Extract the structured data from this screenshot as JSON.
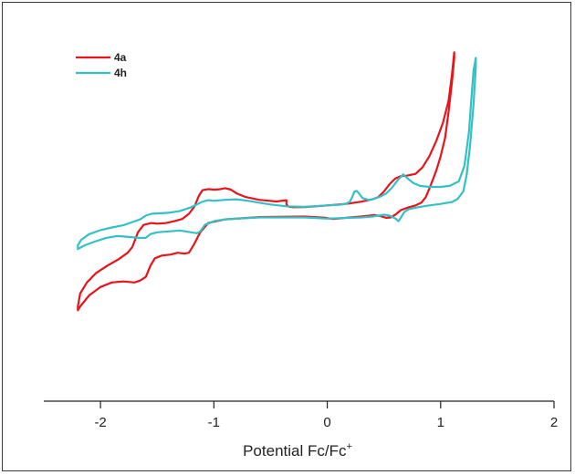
{
  "chart_data": {
    "type": "line",
    "title": "",
    "xlabel": "Potential Fc/Fc",
    "xlabel_sup": "+",
    "ylabel": "",
    "xlim": [
      -2.5,
      2.0
    ],
    "ylim": [
      -1.0,
      1.0
    ],
    "x_ticks": [
      {
        "value": -2,
        "label": "-2"
      },
      {
        "value": -1,
        "label": "-1"
      },
      {
        "value": 0,
        "label": "0"
      },
      {
        "value": 1,
        "label": "1"
      },
      {
        "value": 2,
        "label": "2"
      }
    ],
    "grid": false,
    "legend_position": "top-left",
    "series": [
      {
        "name": "4a",
        "color": "#e8141b",
        "points": [
          [
            -0.36,
            0.083
          ],
          [
            -0.36,
            0.06
          ],
          [
            -0.34,
            0.048
          ],
          [
            -0.3,
            0.045
          ],
          [
            -0.2,
            0.046
          ],
          [
            -0.1,
            0.05
          ],
          [
            0.0,
            0.055
          ],
          [
            0.1,
            0.06
          ],
          [
            0.2,
            0.066
          ],
          [
            0.3,
            0.075
          ],
          [
            0.4,
            0.088
          ],
          [
            0.45,
            0.1
          ],
          [
            0.5,
            0.13
          ],
          [
            0.55,
            0.17
          ],
          [
            0.6,
            0.2
          ],
          [
            0.65,
            0.213
          ],
          [
            0.7,
            0.215
          ],
          [
            0.74,
            0.22
          ],
          [
            0.78,
            0.225
          ],
          [
            0.84,
            0.26
          ],
          [
            0.9,
            0.32
          ],
          [
            0.96,
            0.4
          ],
          [
            1.02,
            0.5
          ],
          [
            1.07,
            0.62
          ],
          [
            1.1,
            0.76
          ],
          [
            1.12,
            0.88
          ],
          [
            1.12,
            0.85
          ],
          [
            1.1,
            0.72
          ],
          [
            1.07,
            0.56
          ],
          [
            1.04,
            0.42
          ],
          [
            1.0,
            0.32
          ],
          [
            0.96,
            0.24
          ],
          [
            0.91,
            0.16
          ],
          [
            0.87,
            0.1
          ],
          [
            0.83,
            0.07
          ],
          [
            0.78,
            0.055
          ],
          [
            0.72,
            0.045
          ],
          [
            0.65,
            0.03
          ],
          [
            0.6,
            0.005
          ],
          [
            0.56,
            -0.01
          ],
          [
            0.52,
            -0.012
          ],
          [
            0.47,
            -0.003
          ],
          [
            0.42,
            0.003
          ],
          [
            0.3,
            -0.005
          ],
          [
            0.2,
            -0.01
          ],
          [
            0.1,
            -0.015
          ],
          [
            0.05,
            -0.018
          ],
          [
            -0.02,
            -0.012
          ],
          [
            -0.2,
            -0.005
          ],
          [
            -0.6,
            -0.008
          ],
          [
            -0.9,
            -0.02
          ],
          [
            -1.05,
            -0.04
          ],
          [
            -1.12,
            -0.09
          ],
          [
            -1.18,
            -0.16
          ],
          [
            -1.22,
            -0.2
          ],
          [
            -1.26,
            -0.205
          ],
          [
            -1.32,
            -0.2
          ],
          [
            -1.38,
            -0.21
          ],
          [
            -1.46,
            -0.215
          ],
          [
            -1.52,
            -0.23
          ],
          [
            -1.56,
            -0.27
          ],
          [
            -1.6,
            -0.33
          ],
          [
            -1.65,
            -0.35
          ],
          [
            -1.7,
            -0.36
          ],
          [
            -1.8,
            -0.355
          ],
          [
            -1.9,
            -0.36
          ],
          [
            -2.0,
            -0.385
          ],
          [
            -2.1,
            -0.43
          ],
          [
            -2.18,
            -0.49
          ],
          [
            -2.2,
            -0.51
          ],
          [
            -2.2,
            -0.49
          ],
          [
            -2.18,
            -0.42
          ],
          [
            -2.12,
            -0.36
          ],
          [
            -2.04,
            -0.31
          ],
          [
            -1.94,
            -0.27
          ],
          [
            -1.84,
            -0.235
          ],
          [
            -1.76,
            -0.2
          ],
          [
            -1.72,
            -0.17
          ],
          [
            -1.67,
            -0.09
          ],
          [
            -1.62,
            -0.05
          ],
          [
            -1.55,
            -0.04
          ],
          [
            -1.5,
            -0.043
          ],
          [
            -1.42,
            -0.04
          ],
          [
            -1.35,
            -0.03
          ],
          [
            -1.28,
            -0.018
          ],
          [
            -1.22,
            0.01
          ],
          [
            -1.17,
            0.05
          ],
          [
            -1.13,
            0.11
          ],
          [
            -1.1,
            0.137
          ],
          [
            -1.05,
            0.143
          ],
          [
            -1.0,
            0.14
          ],
          [
            -0.95,
            0.142
          ],
          [
            -0.9,
            0.148
          ],
          [
            -0.85,
            0.14
          ],
          [
            -0.8,
            0.12
          ],
          [
            -0.72,
            0.1
          ],
          [
            -0.6,
            0.085
          ],
          [
            -0.45,
            0.076
          ],
          [
            -0.36,
            0.083
          ]
        ]
      },
      {
        "name": "4h",
        "color": "#33c0c6",
        "points": [
          [
            -0.36,
            0.05
          ],
          [
            -0.2,
            0.047
          ],
          [
            0.0,
            0.055
          ],
          [
            0.1,
            0.058
          ],
          [
            0.15,
            0.062
          ],
          [
            0.18,
            0.068
          ],
          [
            0.2,
            0.075
          ],
          [
            0.22,
            0.1
          ],
          [
            0.24,
            0.13
          ],
          [
            0.26,
            0.133
          ],
          [
            0.28,
            0.12
          ],
          [
            0.31,
            0.095
          ],
          [
            0.36,
            0.085
          ],
          [
            0.4,
            0.088
          ],
          [
            0.46,
            0.1
          ],
          [
            0.52,
            0.12
          ],
          [
            0.57,
            0.15
          ],
          [
            0.62,
            0.19
          ],
          [
            0.67,
            0.222
          ],
          [
            0.71,
            0.2
          ],
          [
            0.76,
            0.175
          ],
          [
            0.82,
            0.16
          ],
          [
            0.9,
            0.155
          ],
          [
            1.0,
            0.155
          ],
          [
            1.08,
            0.16
          ],
          [
            1.16,
            0.185
          ],
          [
            1.21,
            0.27
          ],
          [
            1.25,
            0.45
          ],
          [
            1.27,
            0.62
          ],
          [
            1.29,
            0.78
          ],
          [
            1.31,
            0.85
          ],
          [
            1.31,
            0.8
          ],
          [
            1.29,
            0.6
          ],
          [
            1.26,
            0.38
          ],
          [
            1.23,
            0.22
          ],
          [
            1.2,
            0.13
          ],
          [
            1.15,
            0.09
          ],
          [
            1.1,
            0.073
          ],
          [
            1.0,
            0.063
          ],
          [
            0.9,
            0.055
          ],
          [
            0.8,
            0.045
          ],
          [
            0.72,
            0.035
          ],
          [
            0.68,
            0.02
          ],
          [
            0.65,
            -0.01
          ],
          [
            0.63,
            -0.03
          ],
          [
            0.6,
            -0.015
          ],
          [
            0.55,
            0.0
          ],
          [
            0.5,
            0.005
          ],
          [
            0.4,
            -0.005
          ],
          [
            0.3,
            -0.01
          ],
          [
            0.2,
            -0.012
          ],
          [
            0.1,
            -0.014
          ],
          [
            0.0,
            -0.016
          ],
          [
            -0.2,
            -0.01
          ],
          [
            -0.6,
            -0.01
          ],
          [
            -0.9,
            -0.02
          ],
          [
            -1.0,
            -0.03
          ],
          [
            -1.08,
            -0.05
          ],
          [
            -1.12,
            -0.085
          ],
          [
            -1.15,
            -0.095
          ],
          [
            -1.2,
            -0.09
          ],
          [
            -1.3,
            -0.08
          ],
          [
            -1.4,
            -0.085
          ],
          [
            -1.5,
            -0.09
          ],
          [
            -1.56,
            -0.1
          ],
          [
            -1.6,
            -0.12
          ],
          [
            -1.66,
            -0.12
          ],
          [
            -1.75,
            -0.115
          ],
          [
            -1.85,
            -0.11
          ],
          [
            -1.95,
            -0.12
          ],
          [
            -2.05,
            -0.14
          ],
          [
            -2.14,
            -0.16
          ],
          [
            -2.2,
            -0.18
          ],
          [
            -2.2,
            -0.16
          ],
          [
            -2.17,
            -0.13
          ],
          [
            -2.1,
            -0.1
          ],
          [
            -2.0,
            -0.078
          ],
          [
            -1.9,
            -0.064
          ],
          [
            -1.8,
            -0.052
          ],
          [
            -1.72,
            -0.035
          ],
          [
            -1.65,
            -0.02
          ],
          [
            -1.6,
            0.0
          ],
          [
            -1.55,
            0.01
          ],
          [
            -1.5,
            0.012
          ],
          [
            -1.4,
            0.015
          ],
          [
            -1.3,
            0.025
          ],
          [
            -1.2,
            0.045
          ],
          [
            -1.15,
            0.06
          ],
          [
            -1.1,
            0.075
          ],
          [
            -1.05,
            0.083
          ],
          [
            -1.0,
            0.08
          ],
          [
            -0.9,
            0.085
          ],
          [
            -0.8,
            0.088
          ],
          [
            -0.7,
            0.08
          ],
          [
            -0.6,
            0.07
          ],
          [
            -0.5,
            0.06
          ],
          [
            -0.36,
            0.05
          ]
        ]
      }
    ]
  }
}
